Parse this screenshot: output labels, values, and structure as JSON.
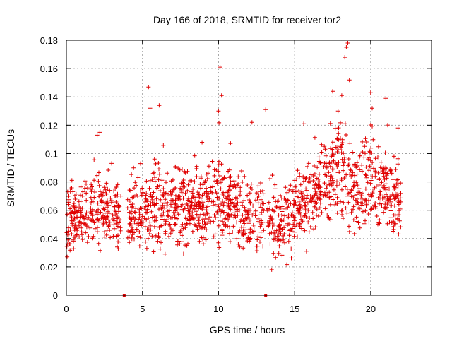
{
  "chart_data": {
    "type": "scatter",
    "title": "Day 166 of 2018, SRMTID for receiver tor2",
    "xlabel": "GPS time / hours",
    "ylabel": "SRMTID / TECUs",
    "xlim": [
      0,
      24
    ],
    "ylim": [
      0,
      0.18
    ],
    "xticks": [
      0,
      5,
      10,
      15,
      20
    ],
    "yticks": [
      0,
      0.02,
      0.04,
      0.06,
      0.08,
      0.1,
      0.12,
      0.14,
      0.16,
      0.18
    ],
    "ytick_labels": [
      "0",
      "0.02",
      "0.04",
      "0.06",
      "0.08",
      "0.1",
      "0.12",
      "0.14",
      "0.16",
      "0.18"
    ],
    "grid": true,
    "marker": "+",
    "color": "#e00000",
    "zero_markers": [
      {
        "x": 3.8,
        "y": 0
      },
      {
        "x": 13.1,
        "y": 0
      }
    ],
    "trend_profile": [
      {
        "x": 0.0,
        "y": 0.05,
        "spread": 0.015
      },
      {
        "x": 1.0,
        "y": 0.055,
        "spread": 0.016
      },
      {
        "x": 2.0,
        "y": 0.064,
        "spread": 0.018
      },
      {
        "x": 3.0,
        "y": 0.06,
        "spread": 0.016
      },
      {
        "x": 4.0,
        "y": 0.052,
        "spread": 0.015
      },
      {
        "x": 5.0,
        "y": 0.06,
        "spread": 0.017
      },
      {
        "x": 6.0,
        "y": 0.066,
        "spread": 0.019
      },
      {
        "x": 7.0,
        "y": 0.06,
        "spread": 0.017
      },
      {
        "x": 8.0,
        "y": 0.064,
        "spread": 0.017
      },
      {
        "x": 9.0,
        "y": 0.062,
        "spread": 0.017
      },
      {
        "x": 10.0,
        "y": 0.068,
        "spread": 0.02
      },
      {
        "x": 11.0,
        "y": 0.06,
        "spread": 0.017
      },
      {
        "x": 12.0,
        "y": 0.055,
        "spread": 0.016
      },
      {
        "x": 13.0,
        "y": 0.058,
        "spread": 0.017
      },
      {
        "x": 14.0,
        "y": 0.05,
        "spread": 0.015
      },
      {
        "x": 15.0,
        "y": 0.058,
        "spread": 0.016
      },
      {
        "x": 16.0,
        "y": 0.066,
        "spread": 0.017
      },
      {
        "x": 17.0,
        "y": 0.08,
        "spread": 0.019
      },
      {
        "x": 18.0,
        "y": 0.09,
        "spread": 0.024
      },
      {
        "x": 19.0,
        "y": 0.075,
        "spread": 0.021
      },
      {
        "x": 20.0,
        "y": 0.085,
        "spread": 0.022
      },
      {
        "x": 21.0,
        "y": 0.07,
        "spread": 0.018
      },
      {
        "x": 22.0,
        "y": 0.066,
        "spread": 0.017
      }
    ],
    "spikes": [
      {
        "x": 2.2,
        "y": 0.115
      },
      {
        "x": 5.4,
        "y": 0.147
      },
      {
        "x": 5.5,
        "y": 0.132
      },
      {
        "x": 6.1,
        "y": 0.134
      },
      {
        "x": 10.1,
        "y": 0.161
      },
      {
        "x": 10.2,
        "y": 0.141
      },
      {
        "x": 10.0,
        "y": 0.13
      },
      {
        "x": 12.2,
        "y": 0.122
      },
      {
        "x": 13.1,
        "y": 0.131
      },
      {
        "x": 15.6,
        "y": 0.121
      },
      {
        "x": 17.5,
        "y": 0.144
      },
      {
        "x": 18.1,
        "y": 0.141
      },
      {
        "x": 18.4,
        "y": 0.175
      },
      {
        "x": 18.5,
        "y": 0.178
      },
      {
        "x": 18.3,
        "y": 0.168
      },
      {
        "x": 18.6,
        "y": 0.152
      },
      {
        "x": 20.0,
        "y": 0.143
      },
      {
        "x": 20.1,
        "y": 0.132
      },
      {
        "x": 21.0,
        "y": 0.139
      },
      {
        "x": 21.8,
        "y": 0.118
      }
    ]
  }
}
